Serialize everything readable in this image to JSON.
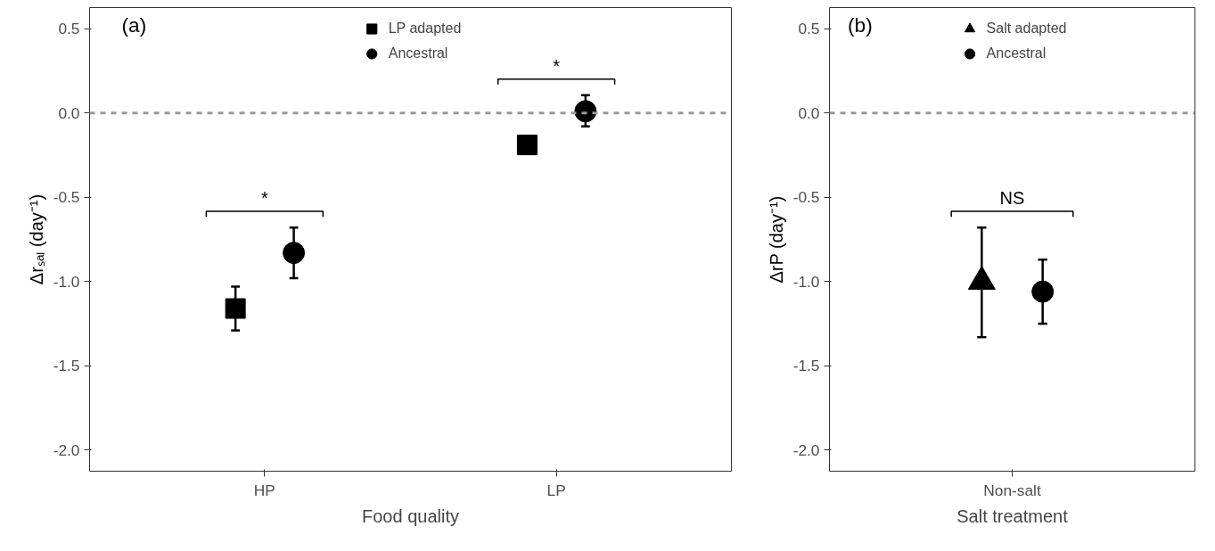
{
  "chart_data": [
    {
      "type": "scatter",
      "categories": [
        "HP",
        "LP"
      ],
      "xlabel": "Food quality",
      "ylabel": "Δrₛₐₗ (day⁻¹)",
      "ylim": [
        -2.125,
        0.625
      ],
      "yticks": [
        {
          "value": 0.5,
          "label": "0.5"
        },
        {
          "value": 0,
          "label": "0.0"
        },
        {
          "value": -0.5,
          "label": "-0.5"
        },
        {
          "value": -1,
          "label": "-1.0"
        },
        {
          "value": -1.5,
          "label": "-1.5"
        },
        {
          "value": -2,
          "label": "-2.0"
        }
      ],
      "grid": false,
      "legend": "top",
      "annotations": [
        "(a)",
        "*",
        "*"
      ],
      "ref_lines": [
        {
          "axis": "y",
          "value": 0,
          "color": "#999999",
          "line_style": "dashed"
        }
      ],
      "series": [
        {
          "name": "LP adapted",
          "color": "#000000",
          "marker": "square",
          "values": [
            -1.16,
            -0.19
          ],
          "errors": [
            [
              -1.29,
              -1.03
            ],
            null
          ]
        },
        {
          "name": "Ancestral",
          "color": "#000000",
          "marker": "circle",
          "values": [
            -0.83,
            0.01
          ],
          "errors": [
            [
              -0.98,
              -0.68
            ],
            [
              -0.08,
              0.105
            ]
          ]
        }
      ]
    },
    {
      "type": "scatter",
      "categories": [
        "Non-salt"
      ],
      "xlabel": "Salt treatment",
      "ylabel": "ΔrP (day⁻¹)",
      "ylim": [
        -2.125,
        0.625
      ],
      "yticks": [
        {
          "value": 0.5,
          "label": "0.5"
        },
        {
          "value": 0,
          "label": "0.0"
        },
        {
          "value": -0.5,
          "label": "-0.5"
        },
        {
          "value": -1,
          "label": "-1.0"
        },
        {
          "value": -1.5,
          "label": "-1.5"
        },
        {
          "value": -2,
          "label": "-2.0"
        }
      ],
      "grid": false,
      "legend": "top",
      "annotations": [
        "(b)",
        "NS"
      ],
      "ref_lines": [
        {
          "axis": "y",
          "value": 0,
          "color": "#999999",
          "line_style": "dashed"
        }
      ],
      "series": [
        {
          "name": "Salt adapted",
          "color": "#000000",
          "marker": "triangle",
          "values": [
            -1.0
          ],
          "errors": [
            [
              -1.33,
              -0.68
            ]
          ]
        },
        {
          "name": "Ancestral",
          "color": "#000000",
          "marker": "circle",
          "values": [
            -1.06
          ],
          "errors": [
            [
              -1.25,
              -0.87
            ]
          ]
        }
      ]
    }
  ]
}
